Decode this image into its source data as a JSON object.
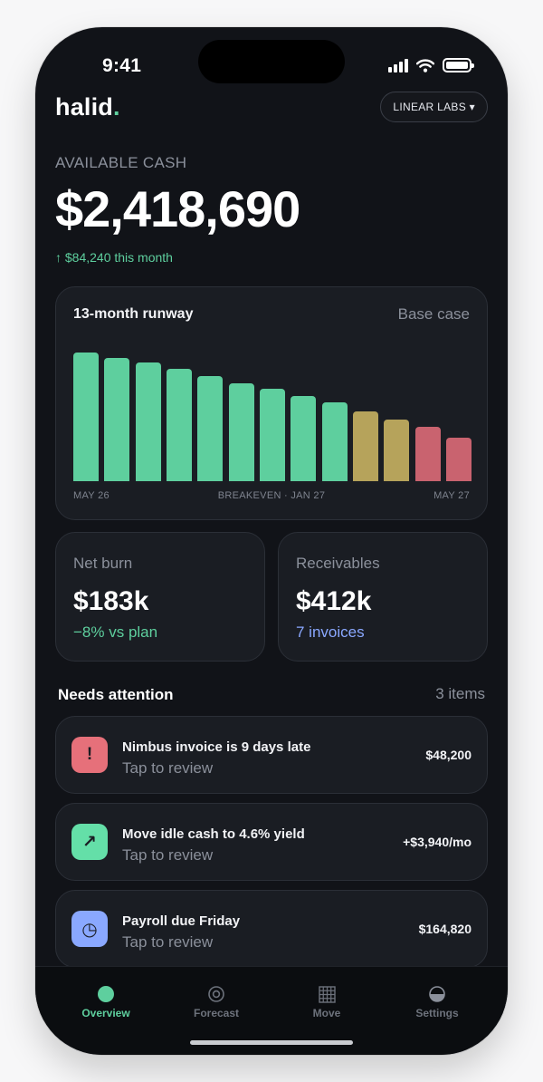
{
  "status_bar": {
    "time": "9:41"
  },
  "header": {
    "logo": "halid",
    "logo_dot": ".",
    "org_selector": "LINEAR LABS ▾"
  },
  "cash": {
    "label": "AVAILABLE CASH",
    "amount": "$2,418,690",
    "delta": "↑ $84,240 this month"
  },
  "runway": {
    "title": "13-month runway",
    "scenario": "Base case",
    "ticks": {
      "start": "MAY 26",
      "middle": "BREAKEVEN · JAN 27",
      "end": "MAY 27"
    }
  },
  "colors": {
    "accent": "#5ecf9e",
    "warn": "#b6a35b",
    "danger": "#c9636f",
    "info": "#8aa8ff"
  },
  "chart_data": {
    "type": "bar",
    "title": "13-month runway",
    "x_tick_labels": [
      "MAY 26",
      "BREAKEVEN · JAN 27",
      "MAY 27"
    ],
    "values": [
      100,
      96,
      92,
      87,
      82,
      76,
      72,
      66,
      61,
      54,
      48,
      42,
      34
    ],
    "value_unit": "relative",
    "ylim": [
      0,
      100
    ],
    "bar_status": [
      "ok",
      "ok",
      "ok",
      "ok",
      "ok",
      "ok",
      "ok",
      "ok",
      "ok",
      "warn",
      "warn",
      "danger",
      "danger"
    ]
  },
  "stats": {
    "net_burn": {
      "label": "Net burn",
      "value": "$183k",
      "sub": "−8% vs plan"
    },
    "receivables": {
      "label": "Receivables",
      "value": "$412k",
      "sub": "7 invoices"
    }
  },
  "attention": {
    "title": "Needs attention",
    "count": "3 items",
    "items": [
      {
        "glyph": "!",
        "icon": "alert-icon",
        "title": "Nimbus invoice is 9 days late",
        "sub": "Tap to review",
        "amount": "$48,200"
      },
      {
        "glyph": "↗",
        "icon": "trend-up-icon",
        "title": "Move idle cash to 4.6% yield",
        "sub": "Tap to review",
        "amount": "+$3,940/mo"
      },
      {
        "glyph": "◷",
        "icon": "clock-icon",
        "title": "Payroll due Friday",
        "sub": "Tap to review",
        "amount": "$164,820"
      }
    ]
  },
  "tabs": [
    {
      "label": "Overview",
      "icon": "overview-dot-icon"
    },
    {
      "label": "Forecast",
      "icon": "target-icon"
    },
    {
      "label": "Move",
      "icon": "grid-icon"
    },
    {
      "label": "Settings",
      "icon": "half-circle-icon"
    }
  ]
}
